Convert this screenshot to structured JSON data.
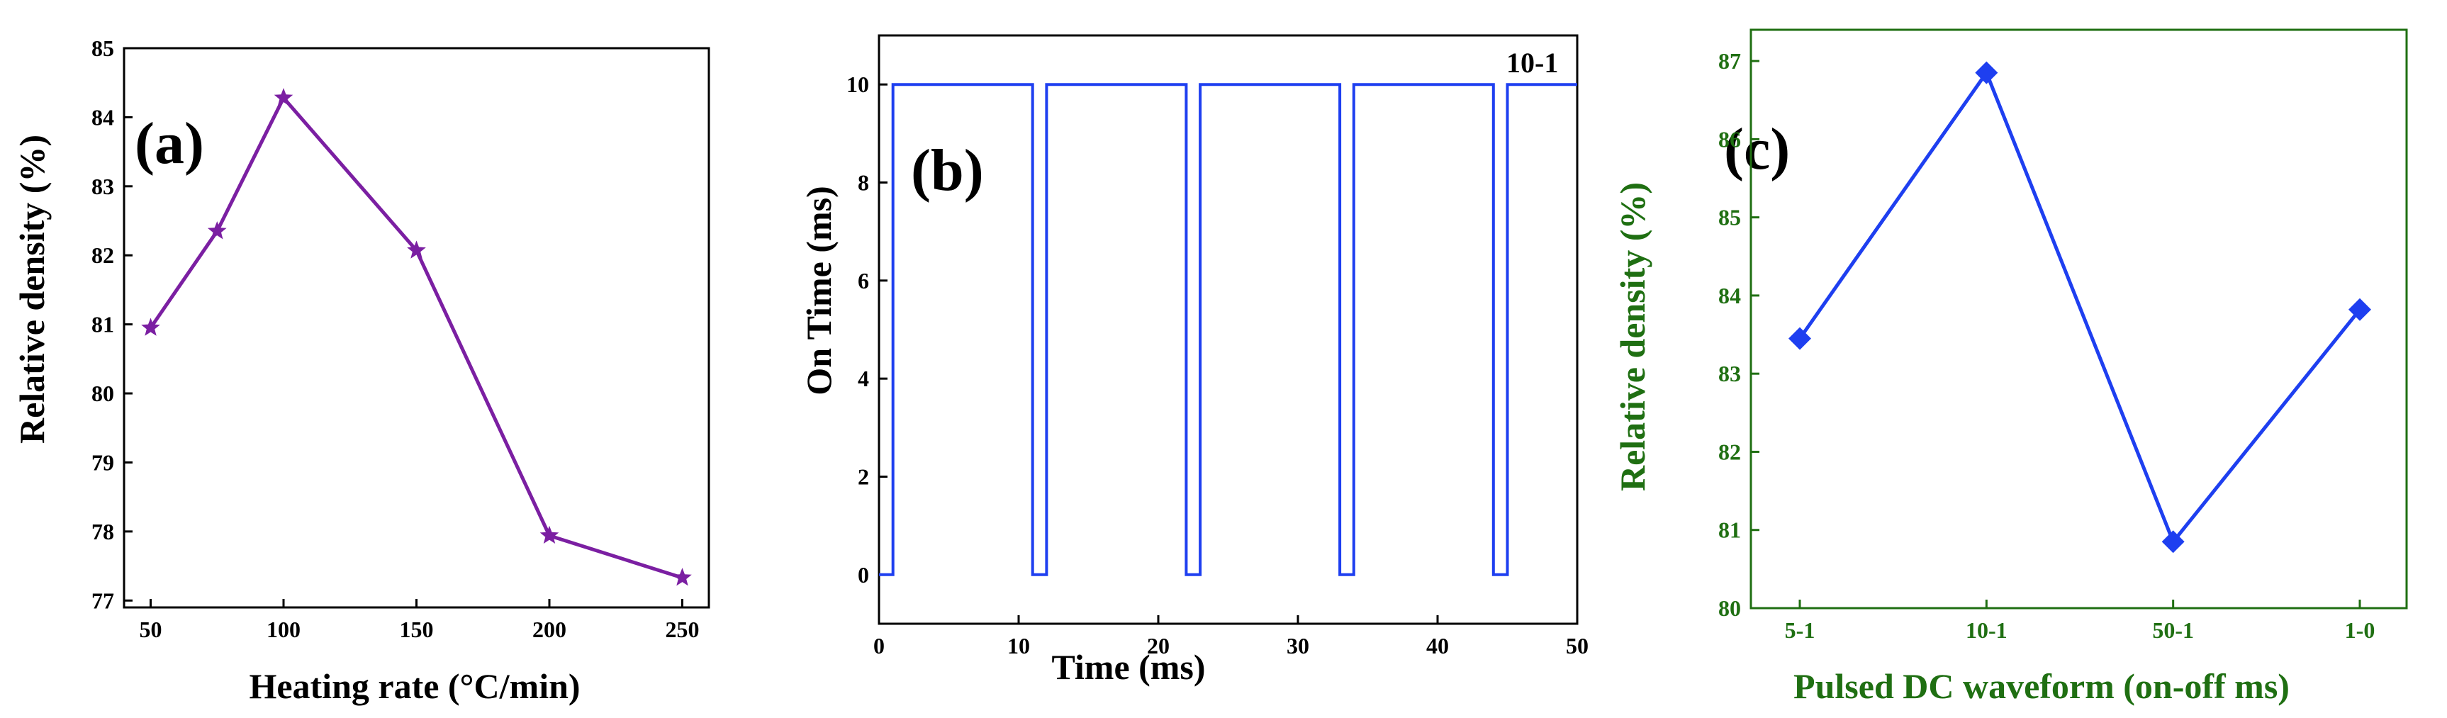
{
  "colors": {
    "a_line": "#7B1FA2",
    "b_line": "#1E3FF0",
    "c_line": "#1E3FF0",
    "c_axis": "#1F6F12",
    "axis": "#000000"
  },
  "chart_data": [
    {
      "id": "a",
      "type": "line",
      "panel_label": "(a)",
      "xlabel": "Heating rate (°C/min)",
      "ylabel": "Relative density (%)",
      "x": [
        50,
        75,
        100,
        150,
        200,
        250
      ],
      "y": [
        80.95,
        82.35,
        84.28,
        82.07,
        77.94,
        77.33
      ],
      "marker": "star",
      "xlim": [
        40,
        260
      ],
      "ylim": [
        76.9,
        85.0
      ],
      "xticks": [
        50,
        100,
        150,
        200,
        250
      ],
      "xtick_labels": [
        "50",
        "100",
        "150",
        "200",
        "250"
      ],
      "yticks": [
        77,
        78,
        79,
        80,
        81,
        82,
        83,
        84,
        85
      ],
      "ytick_labels": [
        "77",
        "78",
        "79",
        "80",
        "81",
        "82",
        "83",
        "84",
        "85"
      ]
    },
    {
      "id": "b",
      "type": "line",
      "panel_label": "(b)",
      "xlabel": "Time  (ms)",
      "ylabel": "On Time (ms)",
      "annotation": "10-1",
      "x": [
        0,
        1,
        1,
        11,
        11,
        12,
        12,
        22,
        22,
        23,
        23,
        33,
        33,
        34,
        34,
        44,
        44,
        45,
        45,
        50
      ],
      "y": [
        0,
        0,
        10,
        10,
        0,
        0,
        10,
        10,
        0,
        0,
        10,
        10,
        0,
        0,
        10,
        10,
        0,
        0,
        10,
        10
      ],
      "xlim": [
        0,
        50
      ],
      "ylim": [
        -1,
        11
      ],
      "xticks": [
        0,
        10,
        20,
        30,
        40,
        50
      ],
      "xtick_labels": [
        "0",
        "10",
        "20",
        "30",
        "40",
        "50"
      ],
      "yticks": [
        0,
        2,
        4,
        6,
        8,
        10
      ],
      "ytick_labels": [
        "0",
        "2",
        "4",
        "6",
        "8",
        "10"
      ]
    },
    {
      "id": "c",
      "type": "line",
      "panel_label": "(c)",
      "xlabel": "Pulsed DC waveform (on-off ms)",
      "ylabel": "Relative density (%)",
      "categories": [
        "5-1",
        "10-1",
        "50-1",
        "1-0"
      ],
      "values": [
        83.45,
        86.85,
        80.85,
        83.82
      ],
      "marker": "diamond",
      "ylim": [
        80,
        87.4
      ],
      "yticks": [
        80,
        81,
        82,
        83,
        84,
        85,
        86,
        87
      ],
      "ytick_labels": [
        "80",
        "81",
        "82",
        "83",
        "84",
        "85",
        "86",
        "87"
      ]
    }
  ]
}
